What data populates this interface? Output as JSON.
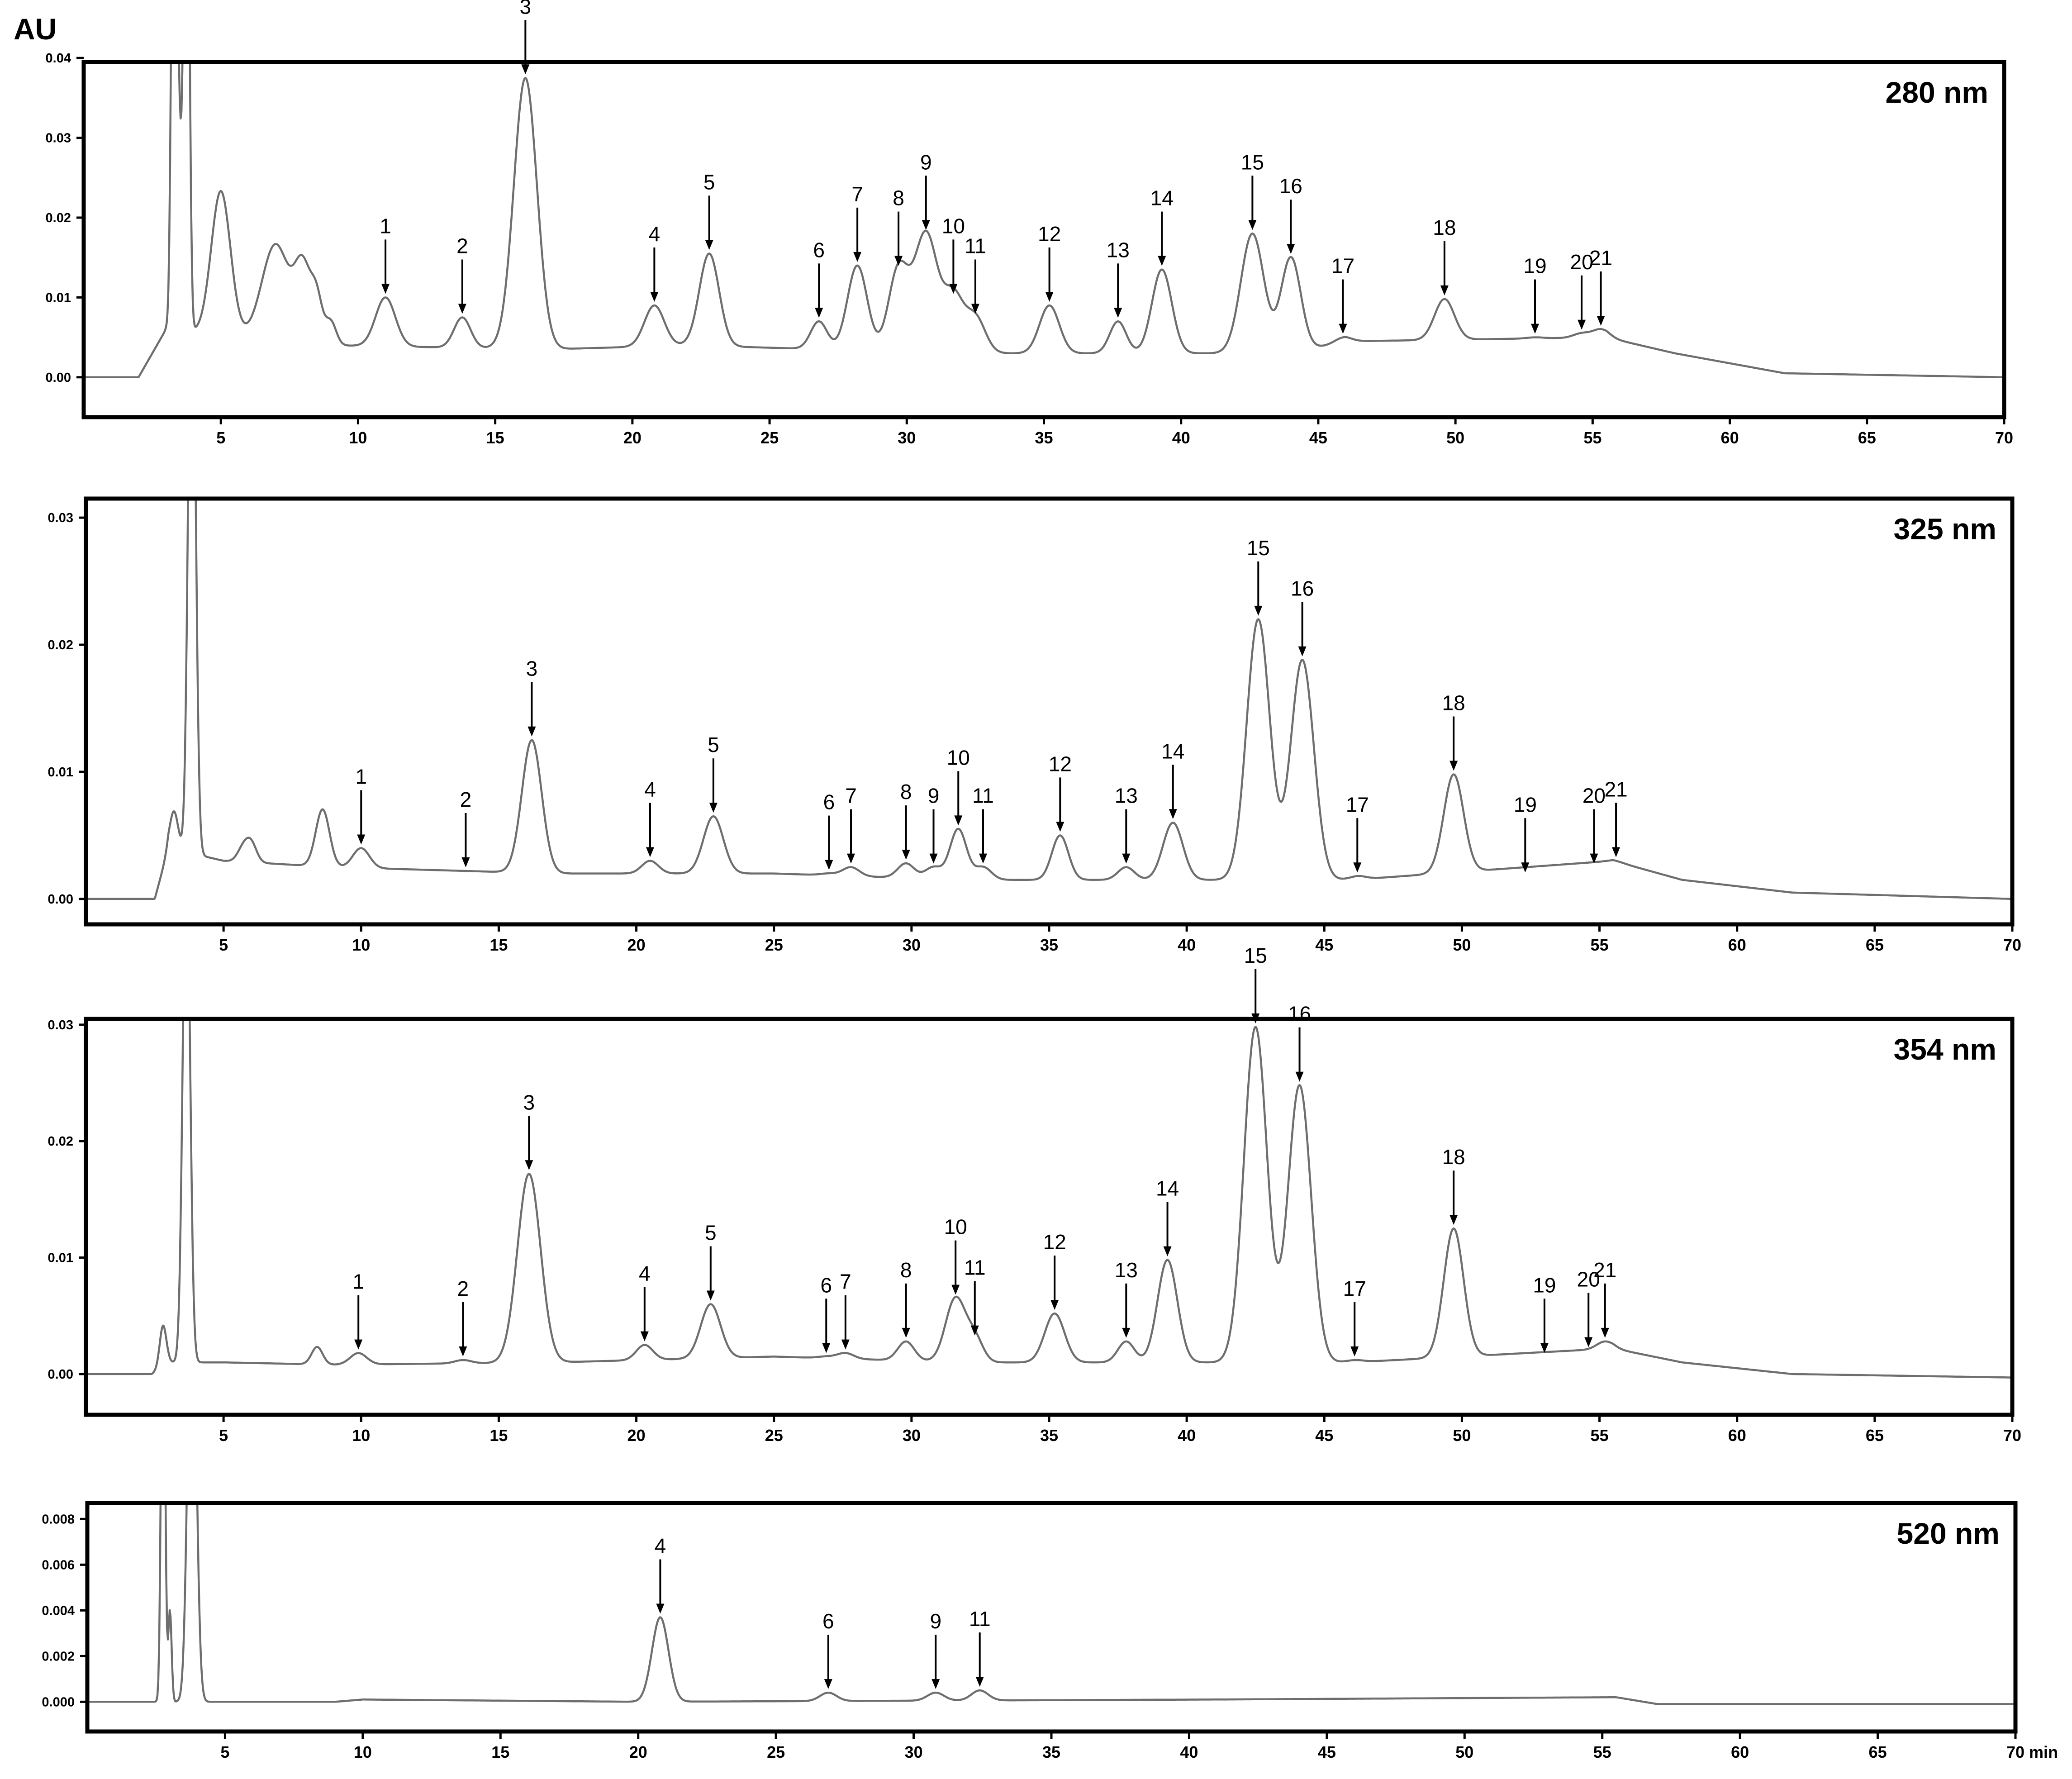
{
  "chart_data": [
    {
      "type": "line",
      "title": "280 nm",
      "ylabel": "AU",
      "xlabel": "",
      "xlim": [
        0,
        70
      ],
      "ylim": [
        -0.005,
        0.0395
      ],
      "x_ticks": [
        "5",
        "10",
        "15",
        "20",
        "25",
        "30",
        "35",
        "40",
        "45",
        "50",
        "55",
        "60",
        "65",
        "70"
      ],
      "y_ticks": [
        "0.00",
        "0.01",
        "0.02",
        "0.03",
        "0.04"
      ],
      "y_tick_values": [
        0,
        0.01,
        0.02,
        0.03,
        0.04
      ],
      "baseline": 0,
      "baseline_segments": [
        [
          0,
          0
        ],
        [
          2,
          0
        ],
        [
          3,
          0.006
        ],
        [
          9,
          0.004
        ],
        [
          17,
          0.0035
        ],
        [
          22,
          0.004
        ],
        [
          32,
          0.003
        ],
        [
          44,
          0.003
        ],
        [
          46,
          0.0045
        ],
        [
          55.5,
          0.005
        ],
        [
          58,
          0.003
        ],
        [
          62,
          0.0005
        ],
        [
          70,
          0
        ]
      ],
      "baseline_wiggles": [
        [
          5,
          0.018,
          0.35
        ],
        [
          7,
          0.012,
          0.5
        ],
        [
          8,
          0.009,
          0.3
        ],
        [
          8.5,
          0.005,
          0.2
        ],
        [
          9,
          0.003,
          0.2
        ]
      ],
      "solvent_peaks": [
        [
          3.3,
          0.085,
          0.09
        ],
        [
          3.75,
          0.085,
          0.09
        ],
        [
          3.5,
          0.02,
          0.1
        ]
      ],
      "peaks": [
        {
          "label": "1",
          "x": 11.0,
          "y": 0.01
        },
        {
          "label": "2",
          "x": 13.8,
          "y": 0.0075
        },
        {
          "label": "3",
          "x": 16.1,
          "y": 0.0375
        },
        {
          "label": "4",
          "x": 20.8,
          "y": 0.009
        },
        {
          "label": "5",
          "x": 22.8,
          "y": 0.0155
        },
        {
          "label": "6",
          "x": 26.8,
          "y": 0.007
        },
        {
          "label": "7",
          "x": 28.2,
          "y": 0.014
        },
        {
          "label": "8",
          "x": 29.7,
          "y": 0.0135
        },
        {
          "label": "9",
          "x": 30.7,
          "y": 0.018
        },
        {
          "label": "10",
          "x": 31.7,
          "y": 0.01
        },
        {
          "label": "11",
          "x": 32.5,
          "y": 0.0075
        },
        {
          "label": "12",
          "x": 35.2,
          "y": 0.009
        },
        {
          "label": "13",
          "x": 37.7,
          "y": 0.007
        },
        {
          "label": "14",
          "x": 39.3,
          "y": 0.0135
        },
        {
          "label": "15",
          "x": 42.6,
          "y": 0.018
        },
        {
          "label": "16",
          "x": 44.0,
          "y": 0.015
        },
        {
          "label": "17",
          "x": 45.9,
          "y": 0.005
        },
        {
          "label": "18",
          "x": 49.6,
          "y": 0.0098
        },
        {
          "label": "19",
          "x": 52.9,
          "y": 0.005
        },
        {
          "label": "20",
          "x": 54.6,
          "y": 0.0055
        },
        {
          "label": "21",
          "x": 55.3,
          "y": 0.006
        }
      ]
    },
    {
      "type": "line",
      "title": "325 nm",
      "ylabel": "",
      "xlabel": "",
      "xlim": [
        0,
        70
      ],
      "ylim": [
        -0.002,
        0.0315
      ],
      "x_ticks": [
        "5",
        "10",
        "15",
        "20",
        "25",
        "30",
        "35",
        "40",
        "45",
        "50",
        "55",
        "60",
        "65",
        "70"
      ],
      "y_ticks": [
        "0.00",
        "0.01",
        "0.02",
        "0.03"
      ],
      "y_tick_values": [
        0,
        0.01,
        0.02,
        0.03
      ],
      "baseline": 0,
      "baseline_segments": [
        [
          0,
          0
        ],
        [
          2.5,
          0
        ],
        [
          3,
          0.004
        ],
        [
          5,
          0.003
        ],
        [
          9,
          0.0025
        ],
        [
          17,
          0.002
        ],
        [
          25,
          0.002
        ],
        [
          32,
          0.0015
        ],
        [
          44,
          0.0015
        ],
        [
          46,
          0.0015
        ],
        [
          55.5,
          0.003
        ],
        [
          58,
          0.0015
        ],
        [
          62,
          0.0005
        ],
        [
          70,
          0
        ]
      ],
      "baseline_wiggles": [
        [
          3.2,
          0.003,
          0.15
        ],
        [
          5.7,
          0.001,
          0.2
        ],
        [
          6,
          0.0015,
          0.2
        ],
        [
          8.6,
          0.0045,
          0.25
        ]
      ],
      "solvent_peaks": [
        [
          3.85,
          0.05,
          0.13
        ]
      ],
      "peaks": [
        {
          "label": "1",
          "x": 10.0,
          "y": 0.004
        },
        {
          "label": "2",
          "x": 13.8,
          "y": 0.0022
        },
        {
          "label": "3",
          "x": 16.2,
          "y": 0.0125
        },
        {
          "label": "4",
          "x": 20.5,
          "y": 0.003
        },
        {
          "label": "5",
          "x": 22.8,
          "y": 0.0065
        },
        {
          "label": "6",
          "x": 27.0,
          "y": 0.002
        },
        {
          "label": "7",
          "x": 27.8,
          "y": 0.0025
        },
        {
          "label": "8",
          "x": 29.8,
          "y": 0.0028
        },
        {
          "label": "9",
          "x": 30.8,
          "y": 0.0025
        },
        {
          "label": "10",
          "x": 31.7,
          "y": 0.0055
        },
        {
          "label": "11",
          "x": 32.6,
          "y": 0.0025
        },
        {
          "label": "12",
          "x": 35.4,
          "y": 0.005
        },
        {
          "label": "13",
          "x": 37.8,
          "y": 0.0025
        },
        {
          "label": "14",
          "x": 39.5,
          "y": 0.006
        },
        {
          "label": "15",
          "x": 42.6,
          "y": 0.022
        },
        {
          "label": "16",
          "x": 44.2,
          "y": 0.0188
        },
        {
          "label": "17",
          "x": 46.2,
          "y": 0.0018
        },
        {
          "label": "18",
          "x": 49.7,
          "y": 0.0098
        },
        {
          "label": "19",
          "x": 52.3,
          "y": 0.0018
        },
        {
          "label": "20",
          "x": 54.8,
          "y": 0.0025
        },
        {
          "label": "21",
          "x": 55.6,
          "y": 0.003
        }
      ]
    },
    {
      "type": "line",
      "title": "354 nm",
      "ylabel": "",
      "xlabel": "",
      "xlim": [
        0,
        70
      ],
      "ylim": [
        -0.0035,
        0.0305
      ],
      "x_ticks": [
        "5",
        "10",
        "15",
        "20",
        "25",
        "30",
        "35",
        "40",
        "45",
        "50",
        "55",
        "60",
        "65",
        "70"
      ],
      "y_ticks": [
        "0.00",
        "0.01",
        "0.02",
        "0.03"
      ],
      "y_tick_values": [
        0,
        0.01,
        0.02,
        0.03
      ],
      "baseline": 0,
      "baseline_segments": [
        [
          0,
          0
        ],
        [
          2.4,
          0
        ],
        [
          3,
          0.001
        ],
        [
          5,
          0.001
        ],
        [
          9,
          0.0008
        ],
        [
          17,
          0.001
        ],
        [
          25,
          0.0015
        ],
        [
          32,
          0.001
        ],
        [
          44,
          0.001
        ],
        [
          46,
          0.001
        ],
        [
          55.5,
          0.0022
        ],
        [
          58,
          0.001
        ],
        [
          62,
          0.0
        ],
        [
          70,
          -0.0003
        ]
      ],
      "baseline_wiggles": [
        [
          2.8,
          0.0035,
          0.12
        ],
        [
          8.4,
          0.0015,
          0.2
        ]
      ],
      "solvent_peaks": [
        [
          3.65,
          0.045,
          0.13
        ]
      ],
      "peaks": [
        {
          "label": "1",
          "x": 9.9,
          "y": 0.0018
        },
        {
          "label": "2",
          "x": 13.7,
          "y": 0.0012
        },
        {
          "label": "3",
          "x": 16.1,
          "y": 0.0172
        },
        {
          "label": "4",
          "x": 20.3,
          "y": 0.0025
        },
        {
          "label": "5",
          "x": 22.7,
          "y": 0.006
        },
        {
          "label": "6",
          "x": 26.9,
          "y": 0.0015
        },
        {
          "label": "7",
          "x": 27.6,
          "y": 0.0018
        },
        {
          "label": "8",
          "x": 29.8,
          "y": 0.0028
        },
        {
          "label": "10",
          "x": 31.6,
          "y": 0.0065
        },
        {
          "label": "11",
          "x": 32.3,
          "y": 0.003
        },
        {
          "label": "12",
          "x": 35.2,
          "y": 0.0052
        },
        {
          "label": "13",
          "x": 37.8,
          "y": 0.0028
        },
        {
          "label": "14",
          "x": 39.3,
          "y": 0.0098
        },
        {
          "label": "15",
          "x": 42.5,
          "y": 0.0298
        },
        {
          "label": "16",
          "x": 44.1,
          "y": 0.0248
        },
        {
          "label": "17",
          "x": 46.1,
          "y": 0.0012
        },
        {
          "label": "18",
          "x": 49.7,
          "y": 0.0125
        },
        {
          "label": "19",
          "x": 53.0,
          "y": 0.0015
        },
        {
          "label": "20",
          "x": 54.6,
          "y": 0.002
        },
        {
          "label": "21",
          "x": 55.2,
          "y": 0.0028
        }
      ]
    },
    {
      "type": "line",
      "title": "520 nm",
      "ylabel": "",
      "xlabel": "min",
      "xlim": [
        0,
        70
      ],
      "ylim": [
        -0.0013,
        0.0087
      ],
      "x_ticks": [
        "5",
        "10",
        "15",
        "20",
        "25",
        "30",
        "35",
        "40",
        "45",
        "50",
        "55",
        "60",
        "65",
        "70"
      ],
      "y_ticks": [
        "0.000",
        "0.002",
        "0.004",
        "0.006",
        "0.008"
      ],
      "y_tick_values": [
        0,
        0.002,
        0.004,
        0.006,
        0.008
      ],
      "baseline": 0,
      "baseline_segments": [
        [
          0,
          0
        ],
        [
          2.4,
          0
        ],
        [
          9,
          0.0
        ],
        [
          10,
          0.0001
        ],
        [
          20,
          0.0
        ],
        [
          41,
          0.0001
        ],
        [
          55.5,
          0.0002
        ],
        [
          57,
          -0.0001
        ],
        [
          70,
          -0.0001
        ]
      ],
      "baseline_wiggles": [
        [
          3.0,
          0.004,
          0.06
        ]
      ],
      "solvent_peaks": [
        [
          2.75,
          0.02,
          0.07
        ],
        [
          3.8,
          0.02,
          0.15
        ]
      ],
      "peaks": [
        {
          "label": "4",
          "x": 20.8,
          "y": 0.0037
        },
        {
          "label": "6",
          "x": 26.9,
          "y": 0.0004
        },
        {
          "label": "9",
          "x": 30.8,
          "y": 0.0004
        },
        {
          "label": "11",
          "x": 32.4,
          "y": 0.0005
        }
      ]
    }
  ]
}
